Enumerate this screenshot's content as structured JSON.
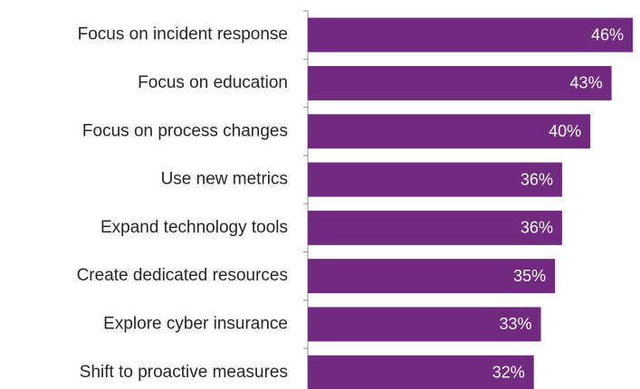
{
  "chart_data": {
    "type": "hbar",
    "categories": [
      "Focus on incident response",
      "Focus on education",
      "Focus on process changes",
      "Use new metrics",
      "Expand technology tools",
      "Create dedicated resources",
      "Explore cyber insurance",
      "Shift to proactive measures"
    ],
    "values": [
      46,
      43,
      40,
      36,
      36,
      35,
      33,
      32
    ],
    "value_labels": [
      "46%",
      "43%",
      "40%",
      "36%",
      "36%",
      "35%",
      "33%",
      "32%"
    ],
    "color": "#712a7f"
  }
}
